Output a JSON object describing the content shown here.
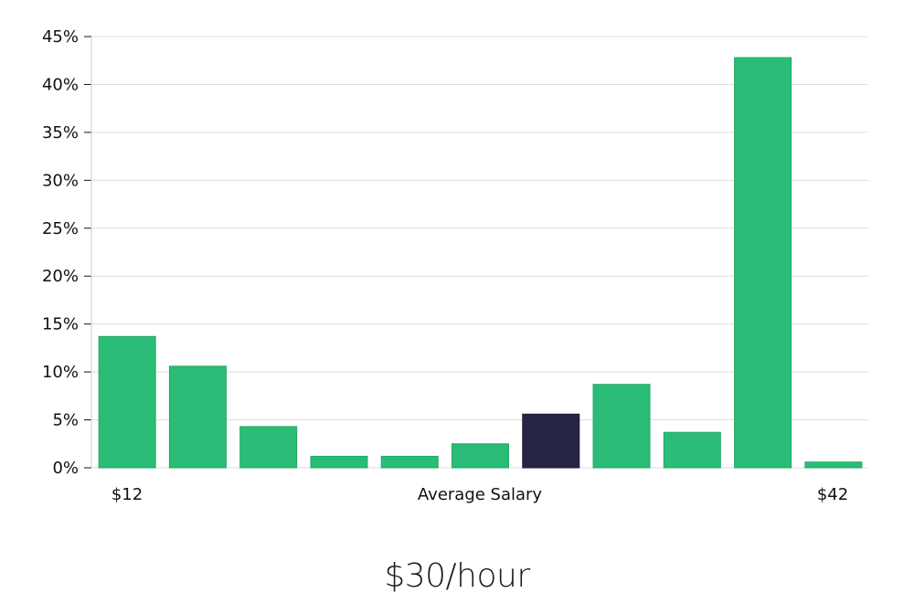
{
  "chart_data": {
    "type": "bar",
    "categories": [
      "",
      "",
      "",
      "",
      "",
      "",
      "",
      "",
      "",
      "",
      ""
    ],
    "values": [
      13.7,
      10.6,
      4.3,
      1.2,
      1.2,
      2.5,
      5.6,
      8.7,
      3.7,
      42.8,
      0.6
    ],
    "highlight_index": 6,
    "ylim": [
      0,
      45
    ],
    "yticks": [
      0,
      5,
      10,
      15,
      20,
      25,
      30,
      35,
      40,
      45
    ],
    "ytick_format": "percent",
    "xlabel_left": "$12",
    "xlabel_center": "Average Salary",
    "xlabel_right": "$42",
    "grid": true,
    "colors": {
      "bar": "#2bbd77",
      "bar_edge": "#22a866",
      "highlight": "#272546",
      "grid": "#dddddd",
      "axis": "#cccccc"
    }
  },
  "headline": "$30/hour"
}
